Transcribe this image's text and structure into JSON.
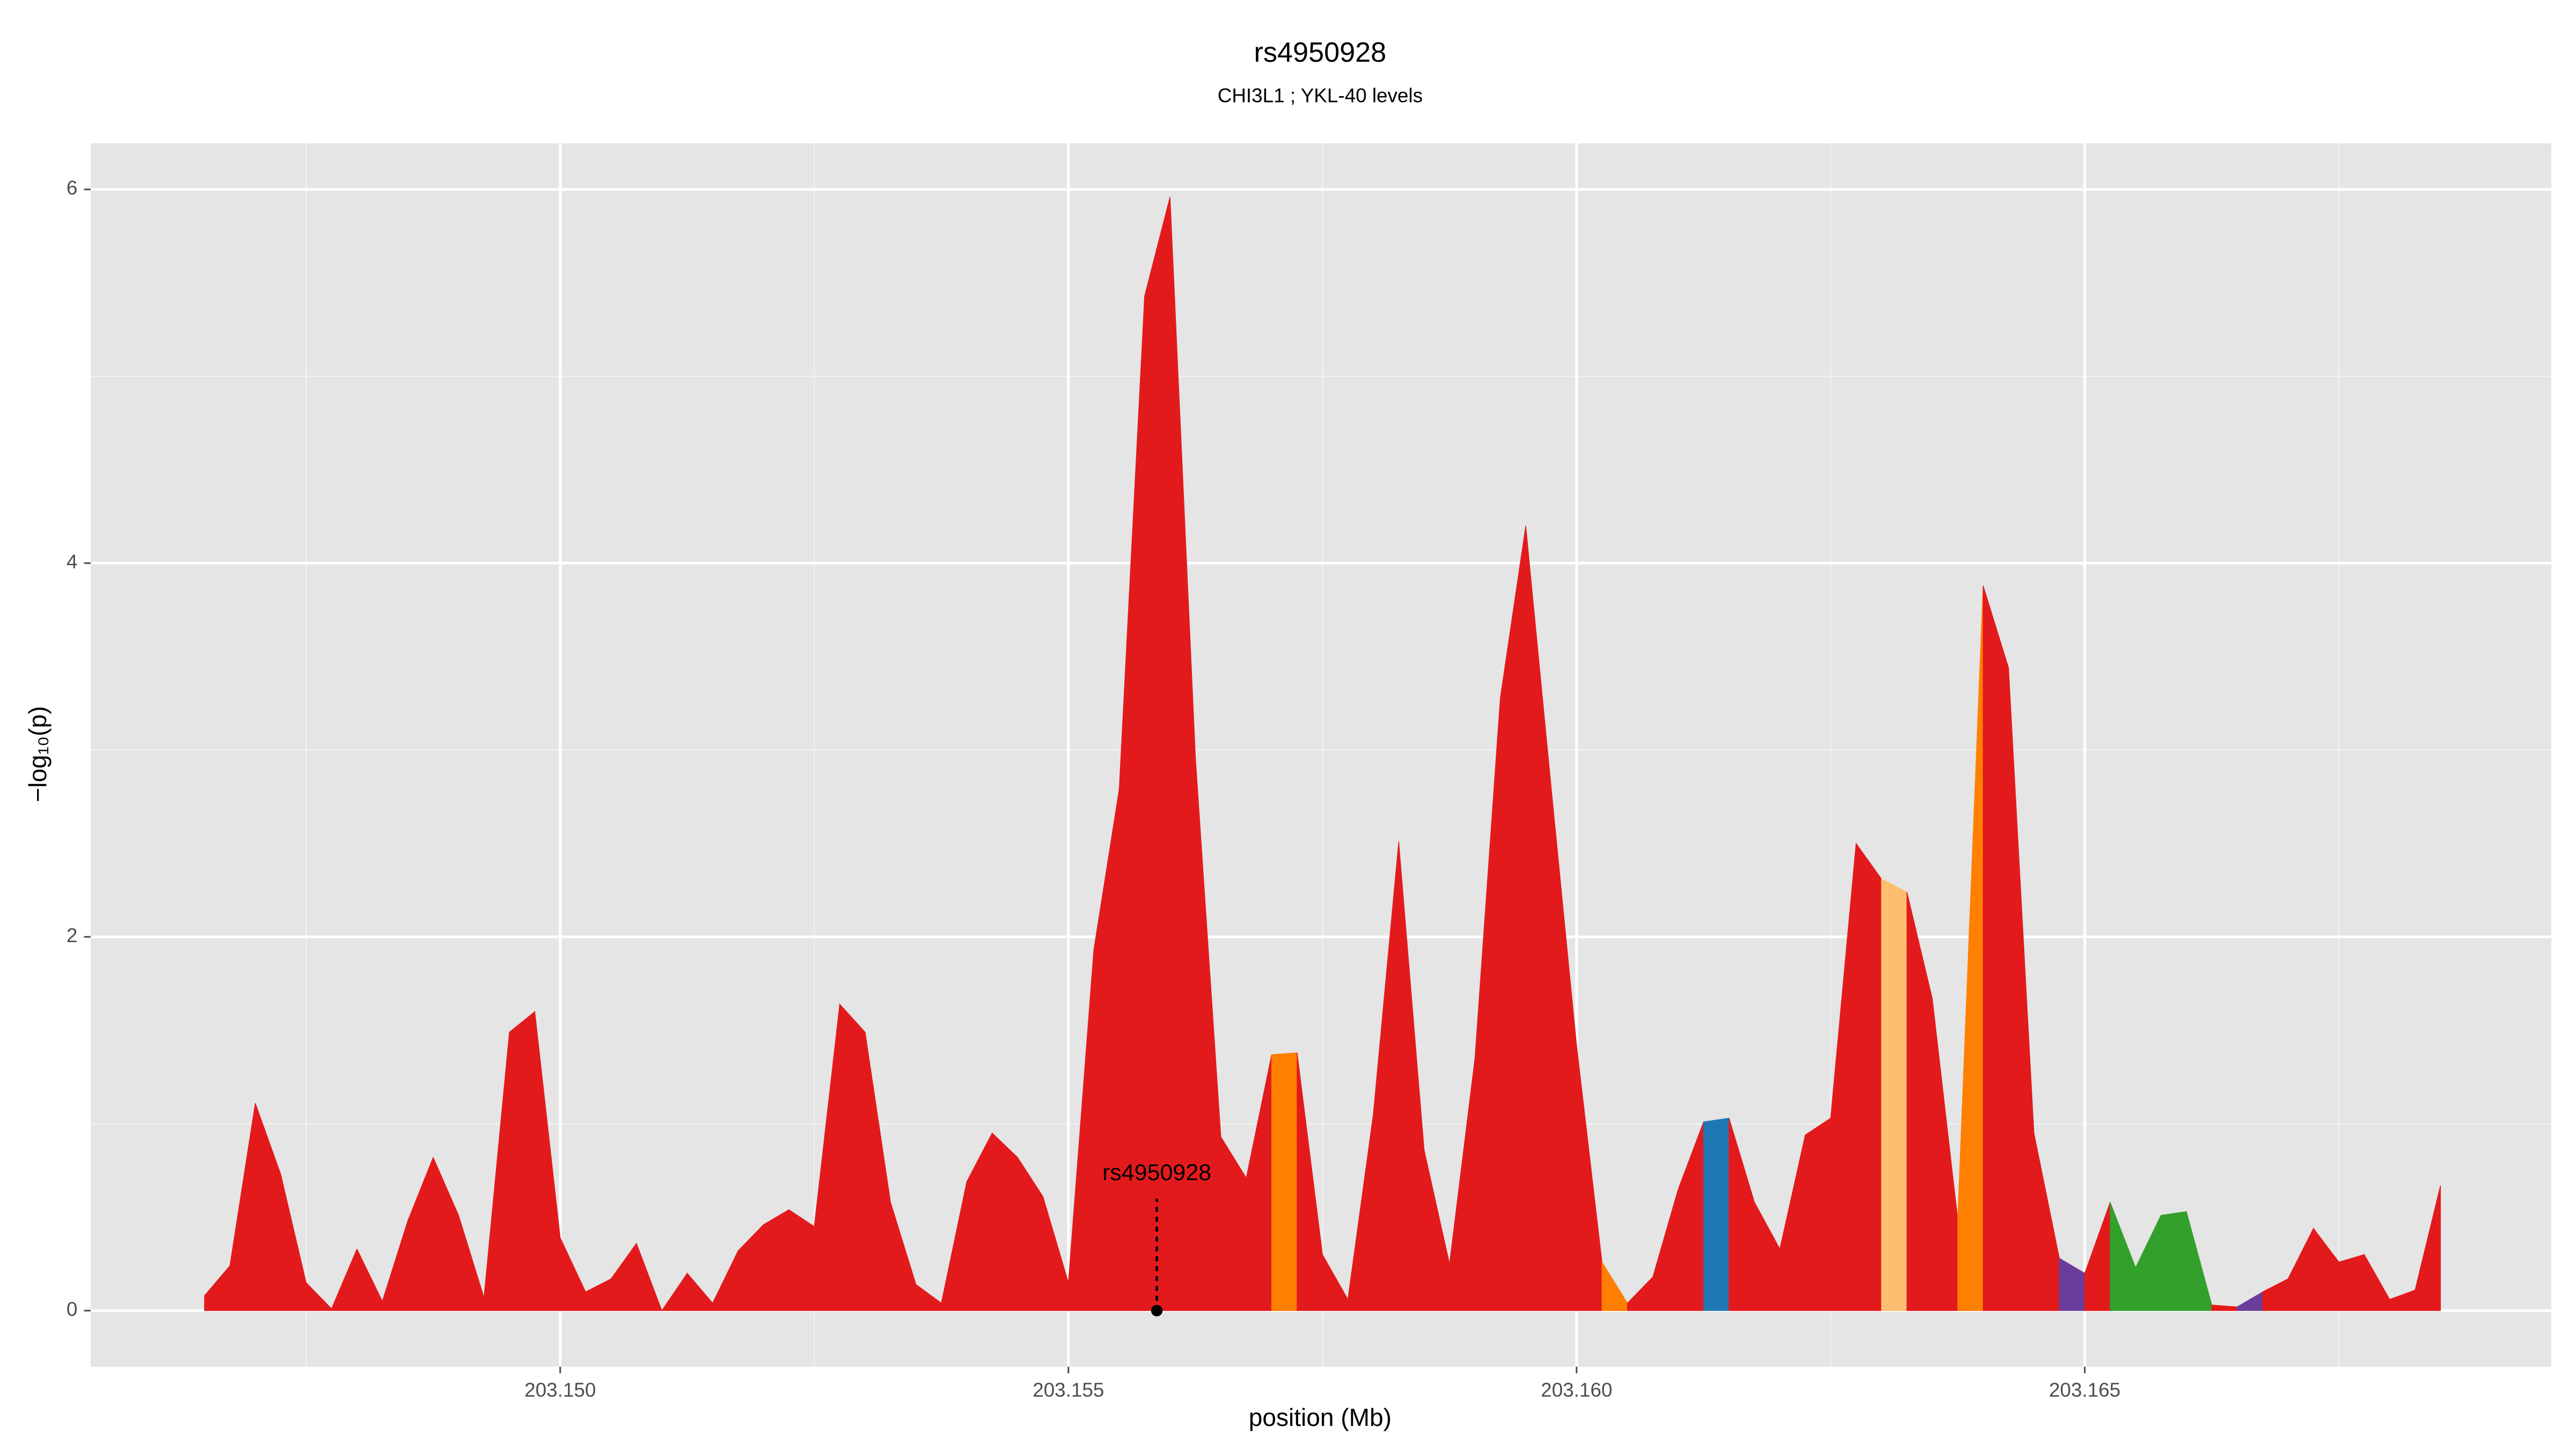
{
  "chart_data": {
    "type": "area",
    "title": "rs4950928",
    "subtitle": "CHI3L1 ; YKL-40 levels",
    "x_label": "position (Mb)",
    "y_label": "−log₁₀(p)",
    "x": [
      203.1465,
      203.14675,
      203.147,
      203.14725,
      203.1475,
      203.14775,
      203.148,
      203.14825,
      203.1485,
      203.14875,
      203.149,
      203.14925,
      203.1495,
      203.14975,
      203.15,
      203.15025,
      203.1505,
      203.15075,
      203.151,
      203.15125,
      203.1515,
      203.15175,
      203.152,
      203.15225,
      203.1525,
      203.15275,
      203.153,
      203.15325,
      203.1535,
      203.15375,
      203.154,
      203.15425,
      203.1545,
      203.15475,
      203.155,
      203.15525,
      203.1555,
      203.15575,
      203.156,
      203.15625,
      203.1565,
      203.15675,
      203.157,
      203.15725,
      203.1575,
      203.15775,
      203.158,
      203.15825,
      203.1585,
      203.15875,
      203.159,
      203.15925,
      203.1595,
      203.15975,
      203.16,
      203.16025,
      203.1605,
      203.16075,
      203.161,
      203.16125,
      203.1615,
      203.16175,
      203.162,
      203.16225,
      203.1625,
      203.16275,
      203.163,
      203.16325,
      203.1635,
      203.16375,
      203.164,
      203.16425,
      203.1645,
      203.16475,
      203.165,
      203.16525,
      203.1655,
      203.16575,
      203.166,
      203.16625,
      203.1665,
      203.16675,
      203.167,
      203.16725,
      203.1675,
      203.16775,
      203.168,
      203.16825,
      203.1685
    ],
    "values": [
      0.08,
      0.24,
      1.11,
      0.73,
      0.15,
      0.01,
      0.33,
      0.05,
      0.48,
      0.82,
      0.51,
      0.07,
      1.49,
      1.6,
      0.39,
      0.1,
      0.17,
      0.36,
      0.0,
      0.2,
      0.04,
      0.32,
      0.46,
      0.54,
      0.45,
      1.64,
      1.49,
      0.58,
      0.14,
      0.04,
      0.69,
      0.95,
      0.82,
      0.61,
      0.15,
      1.93,
      2.79,
      5.43,
      5.96,
      2.96,
      0.93,
      0.71,
      1.37,
      1.38,
      0.3,
      0.06,
      1.05,
      2.51,
      0.86,
      0.25,
      1.35,
      3.28,
      4.2,
      2.8,
      1.42,
      0.26,
      0.04,
      0.18,
      0.65,
      1.01,
      1.03,
      0.58,
      0.33,
      0.94,
      1.03,
      2.5,
      2.31,
      2.24,
      1.67,
      0.49,
      3.88,
      3.44,
      0.95,
      0.28,
      0.2,
      0.58,
      0.23,
      0.51,
      0.53,
      0.03,
      0.02,
      0.1,
      0.17,
      0.44,
      0.26,
      0.3,
      0.06,
      0.11,
      0.67
    ],
    "colors": [
      "#e31a1c",
      "#e31a1c",
      "#e31a1c",
      "#e31a1c",
      "#e31a1c",
      "#e31a1c",
      "#e31a1c",
      "#e31a1c",
      "#e31a1c",
      "#e31a1c",
      "#e31a1c",
      "#e31a1c",
      "#e31a1c",
      "#e31a1c",
      "#e31a1c",
      "#e31a1c",
      "#e31a1c",
      "#e31a1c",
      "#e31a1c",
      "#e31a1c",
      "#e31a1c",
      "#e31a1c",
      "#e31a1c",
      "#e31a1c",
      "#e31a1c",
      "#e31a1c",
      "#e31a1c",
      "#e31a1c",
      "#e31a1c",
      "#e31a1c",
      "#e31a1c",
      "#e31a1c",
      "#e31a1c",
      "#e31a1c",
      "#e31a1c",
      "#e31a1c",
      "#e31a1c",
      "#e31a1c",
      "#e31a1c",
      "#e31a1c",
      "#e31a1c",
      "#e31a1c",
      "#ff7f00",
      "#e31a1c",
      "#e31a1c",
      "#e31a1c",
      "#e31a1c",
      "#e31a1c",
      "#e31a1c",
      "#e31a1c",
      "#e31a1c",
      "#e31a1c",
      "#e31a1c",
      "#e31a1c",
      "#e31a1c",
      "#ff7f00",
      "#e31a1c",
      "#e31a1c",
      "#e31a1c",
      "#1f78b4",
      "#e31a1c",
      "#e31a1c",
      "#e31a1c",
      "#e31a1c",
      "#e31a1c",
      "#e31a1c",
      "#fdbf6f",
      "#e31a1c",
      "#e31a1c",
      "#ff7f00",
      "#e31a1c",
      "#e31a1c",
      "#e31a1c",
      "#6a3d9a",
      "#e31a1c",
      "#33a02c",
      "#33a02c",
      "#33a02c",
      "#33a02c",
      "#e31a1c",
      "#6a3d9a",
      "#e31a1c",
      "#e31a1c",
      "#e31a1c",
      "#e31a1c",
      "#e31a1c",
      "#e31a1c",
      "#e31a1c",
      "#e31a1c"
    ],
    "xlim": [
      203.14538,
      203.16959
    ],
    "ylim": [
      -0.3,
      6.247
    ],
    "xticks": [
      {
        "value": 203.15,
        "label": "203.150"
      },
      {
        "value": 203.155,
        "label": "203.155"
      },
      {
        "value": 203.16,
        "label": "203.160"
      },
      {
        "value": 203.165,
        "label": "203.165"
      }
    ],
    "yticks": [
      0,
      2,
      4,
      6
    ],
    "x_minor_grid": [
      203.1475,
      203.1525,
      203.1575,
      203.1625,
      203.1675
    ],
    "y_minor_grid": [
      1,
      3,
      5
    ],
    "grid": true,
    "annotation": {
      "text": "rs4950928",
      "x": 203.15587,
      "y": 0
    }
  }
}
